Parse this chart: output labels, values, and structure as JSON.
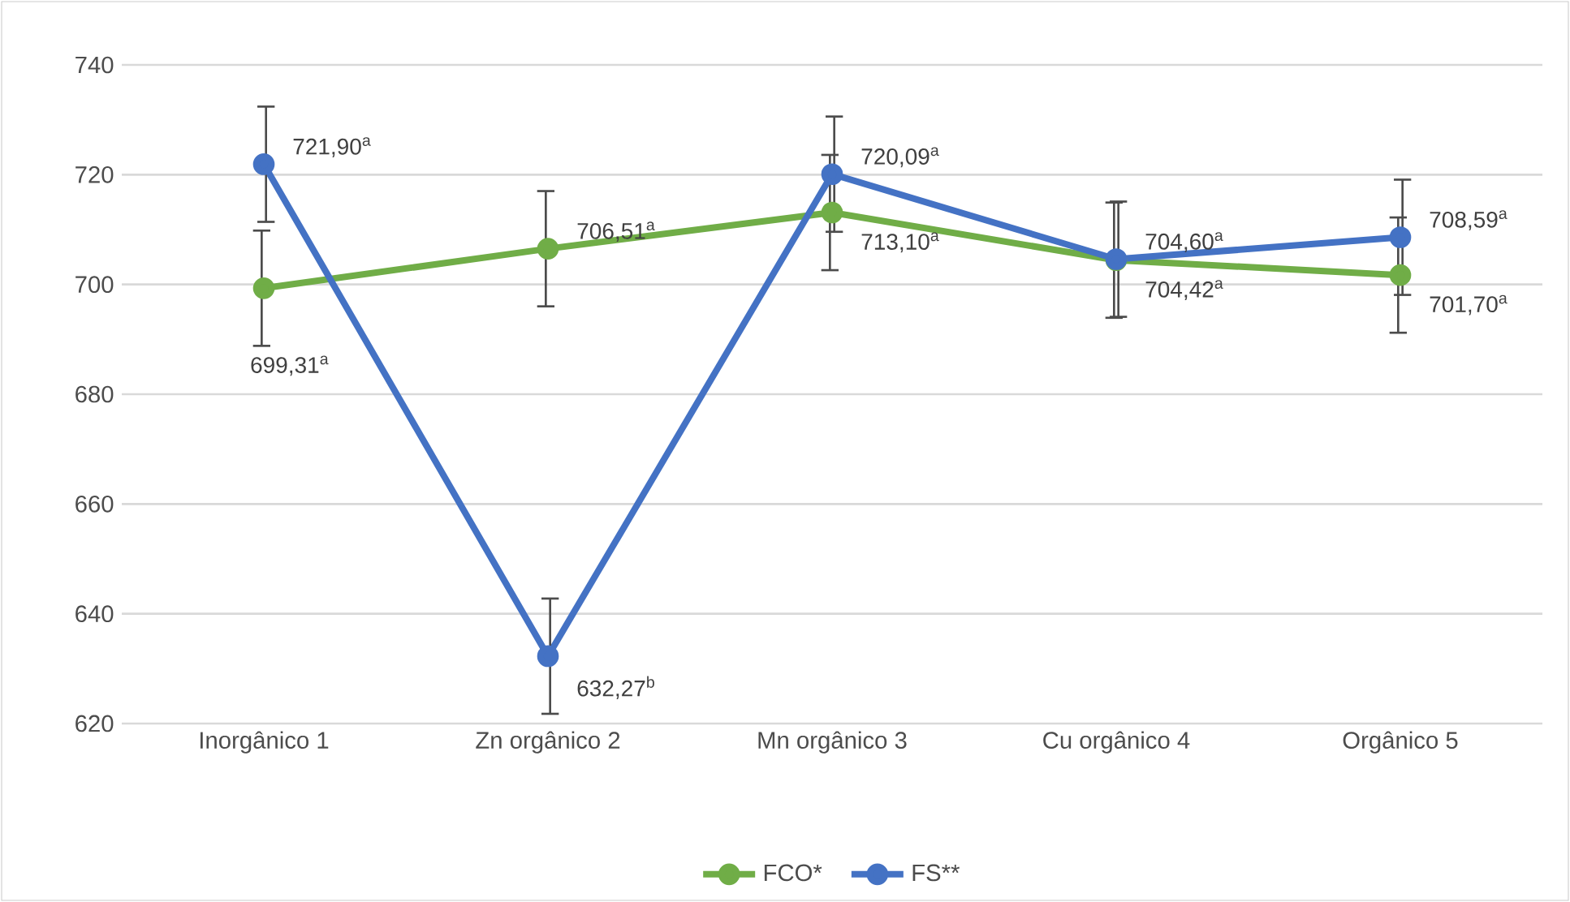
{
  "chart_data": {
    "type": "line",
    "categories": [
      "Inorgânico 1",
      "Zn orgânico 2",
      "Mn orgânico 3",
      "Cu orgânico 4",
      "Orgânico 5"
    ],
    "series": [
      {
        "name": "FCO*",
        "color": "#70ad47",
        "values": [
          699.31,
          706.51,
          713.1,
          704.42,
          701.7
        ],
        "errors": [
          10.5,
          10.5,
          10.5,
          10.5,
          10.5
        ],
        "value_labels": [
          "699,31$^{a}$",
          "706,51$^{a}$",
          "713,10$^{a}$",
          "704,42$^{a}$",
          "701,70$^{a}$"
        ]
      },
      {
        "name": "FS**",
        "color": "#4472c4",
        "values": [
          721.9,
          632.27,
          720.09,
          704.6,
          708.59
        ],
        "errors": [
          10.5,
          10.5,
          10.5,
          10.5,
          10.5
        ],
        "value_labels": [
          "721,90$^{a}$",
          "632,27$^{b}$",
          "720,09$^{a}$",
          "704,60$^{a}$",
          "708,59$^{a}$"
        ]
      }
    ],
    "ylim": [
      620,
      740
    ],
    "yticks": [
      620,
      640,
      660,
      680,
      700,
      720,
      740
    ],
    "grid": "y",
    "legend": "bottom",
    "marker": "circle",
    "line_style": "solid"
  }
}
